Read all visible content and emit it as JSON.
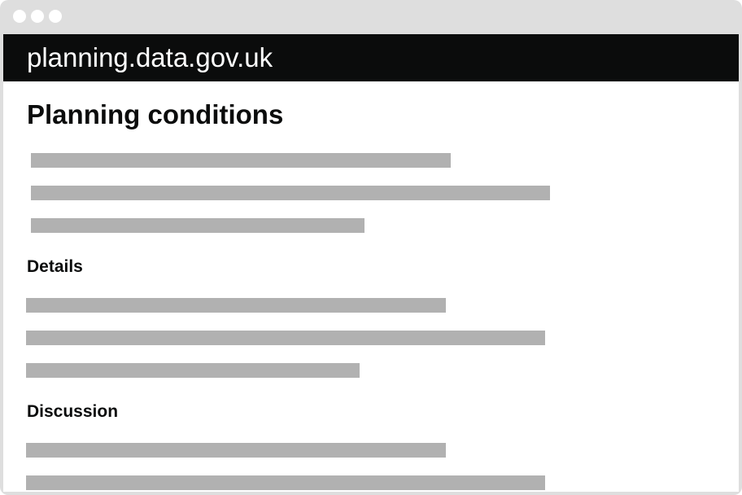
{
  "header": {
    "site_title": "planning.data.gov.uk"
  },
  "page": {
    "title": "Planning conditions"
  },
  "sections": [
    {
      "heading": "Details"
    },
    {
      "heading": "Discussion"
    }
  ],
  "colors": {
    "window_frame": "#dedede",
    "header_background": "#0b0c0c",
    "placeholder_line": "#b1b1b1",
    "text": "#0b0c0c"
  }
}
